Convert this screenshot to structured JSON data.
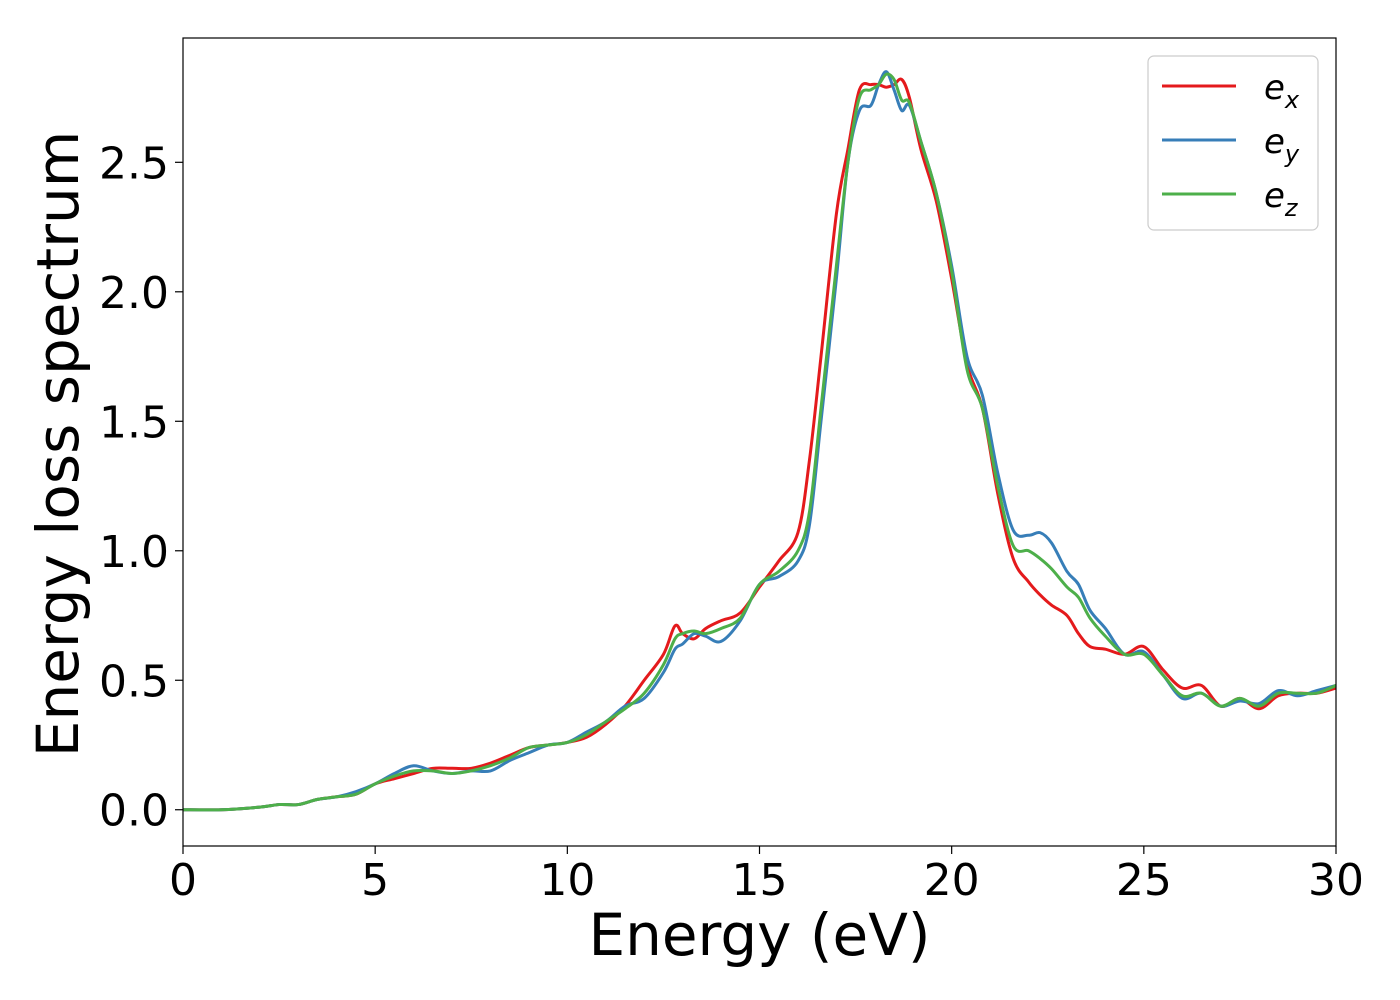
{
  "chart_data": {
    "type": "line",
    "title": "",
    "xlabel": "Energy (eV)",
    "ylabel": "Energy loss spectrum",
    "xlim": [
      0,
      30
    ],
    "ylim": [
      -0.14,
      2.98
    ],
    "xticks": [
      0,
      5,
      10,
      15,
      20,
      25,
      30
    ],
    "yticks": [
      0.0,
      0.5,
      1.0,
      1.5,
      2.0,
      2.5
    ],
    "xtick_labels": [
      "0",
      "5",
      "10",
      "15",
      "20",
      "25",
      "30"
    ],
    "ytick_labels": [
      "0.0",
      "0.5",
      "1.0",
      "1.5",
      "2.0",
      "2.5"
    ],
    "grid": false,
    "legend_position": "top-right",
    "x": [
      0,
      1,
      2,
      2.5,
      3,
      3.5,
      4,
      4.5,
      5,
      5.5,
      6,
      6.5,
      7,
      7.5,
      8,
      8.5,
      9,
      9.5,
      10,
      10.5,
      11,
      11.5,
      12,
      12.5,
      12.8,
      13,
      13.3,
      13.6,
      14,
      14.5,
      15,
      15.5,
      16,
      16.3,
      16.6,
      17,
      17.3,
      17.6,
      17.9,
      18.1,
      18.3,
      18.5,
      18.7,
      18.9,
      19.2,
      19.6,
      20,
      20.4,
      20.8,
      21.2,
      21.6,
      22,
      22.3,
      22.6,
      23,
      23.3,
      23.6,
      24,
      24.5,
      25,
      25.5,
      26,
      26.5,
      27,
      27.5,
      28,
      28.5,
      29,
      29.5,
      30
    ],
    "series": [
      {
        "name": "e",
        "subscript": "x",
        "color": "#e41a1c",
        "values": [
          0.0,
          0.0,
          0.01,
          0.02,
          0.02,
          0.04,
          0.05,
          0.06,
          0.1,
          0.12,
          0.14,
          0.16,
          0.16,
          0.16,
          0.18,
          0.21,
          0.24,
          0.25,
          0.26,
          0.28,
          0.33,
          0.4,
          0.5,
          0.6,
          0.71,
          0.68,
          0.66,
          0.7,
          0.73,
          0.76,
          0.86,
          0.96,
          1.07,
          1.35,
          1.75,
          2.3,
          2.55,
          2.78,
          2.8,
          2.8,
          2.79,
          2.8,
          2.82,
          2.75,
          2.55,
          2.35,
          2.05,
          1.72,
          1.55,
          1.22,
          0.97,
          0.88,
          0.83,
          0.79,
          0.75,
          0.68,
          0.63,
          0.62,
          0.6,
          0.63,
          0.54,
          0.47,
          0.48,
          0.4,
          0.43,
          0.39,
          0.44,
          0.45,
          0.45,
          0.47
        ]
      },
      {
        "name": "e",
        "subscript": "y",
        "color": "#377eb8",
        "values": [
          0.0,
          0.0,
          0.01,
          0.02,
          0.02,
          0.04,
          0.05,
          0.07,
          0.1,
          0.14,
          0.17,
          0.15,
          0.14,
          0.15,
          0.15,
          0.19,
          0.22,
          0.25,
          0.26,
          0.3,
          0.34,
          0.4,
          0.43,
          0.53,
          0.62,
          0.64,
          0.68,
          0.67,
          0.65,
          0.73,
          0.87,
          0.9,
          0.96,
          1.1,
          1.5,
          2.05,
          2.5,
          2.7,
          2.72,
          2.8,
          2.85,
          2.78,
          2.7,
          2.72,
          2.58,
          2.38,
          2.1,
          1.75,
          1.6,
          1.3,
          1.08,
          1.06,
          1.07,
          1.03,
          0.92,
          0.87,
          0.77,
          0.7,
          0.6,
          0.61,
          0.52,
          0.43,
          0.45,
          0.4,
          0.42,
          0.41,
          0.46,
          0.44,
          0.46,
          0.48
        ]
      },
      {
        "name": "e",
        "subscript": "z",
        "color": "#4daf4a",
        "values": [
          0.0,
          0.0,
          0.01,
          0.02,
          0.02,
          0.04,
          0.05,
          0.06,
          0.1,
          0.13,
          0.15,
          0.15,
          0.14,
          0.15,
          0.17,
          0.2,
          0.24,
          0.25,
          0.26,
          0.29,
          0.34,
          0.39,
          0.45,
          0.56,
          0.66,
          0.68,
          0.69,
          0.68,
          0.7,
          0.74,
          0.87,
          0.92,
          1.0,
          1.15,
          1.55,
          2.1,
          2.5,
          2.75,
          2.78,
          2.8,
          2.84,
          2.82,
          2.74,
          2.73,
          2.58,
          2.38,
          2.08,
          1.7,
          1.55,
          1.25,
          1.02,
          1.0,
          0.97,
          0.93,
          0.86,
          0.82,
          0.74,
          0.67,
          0.6,
          0.6,
          0.52,
          0.44,
          0.45,
          0.4,
          0.43,
          0.4,
          0.45,
          0.45,
          0.45,
          0.48
        ]
      }
    ]
  }
}
